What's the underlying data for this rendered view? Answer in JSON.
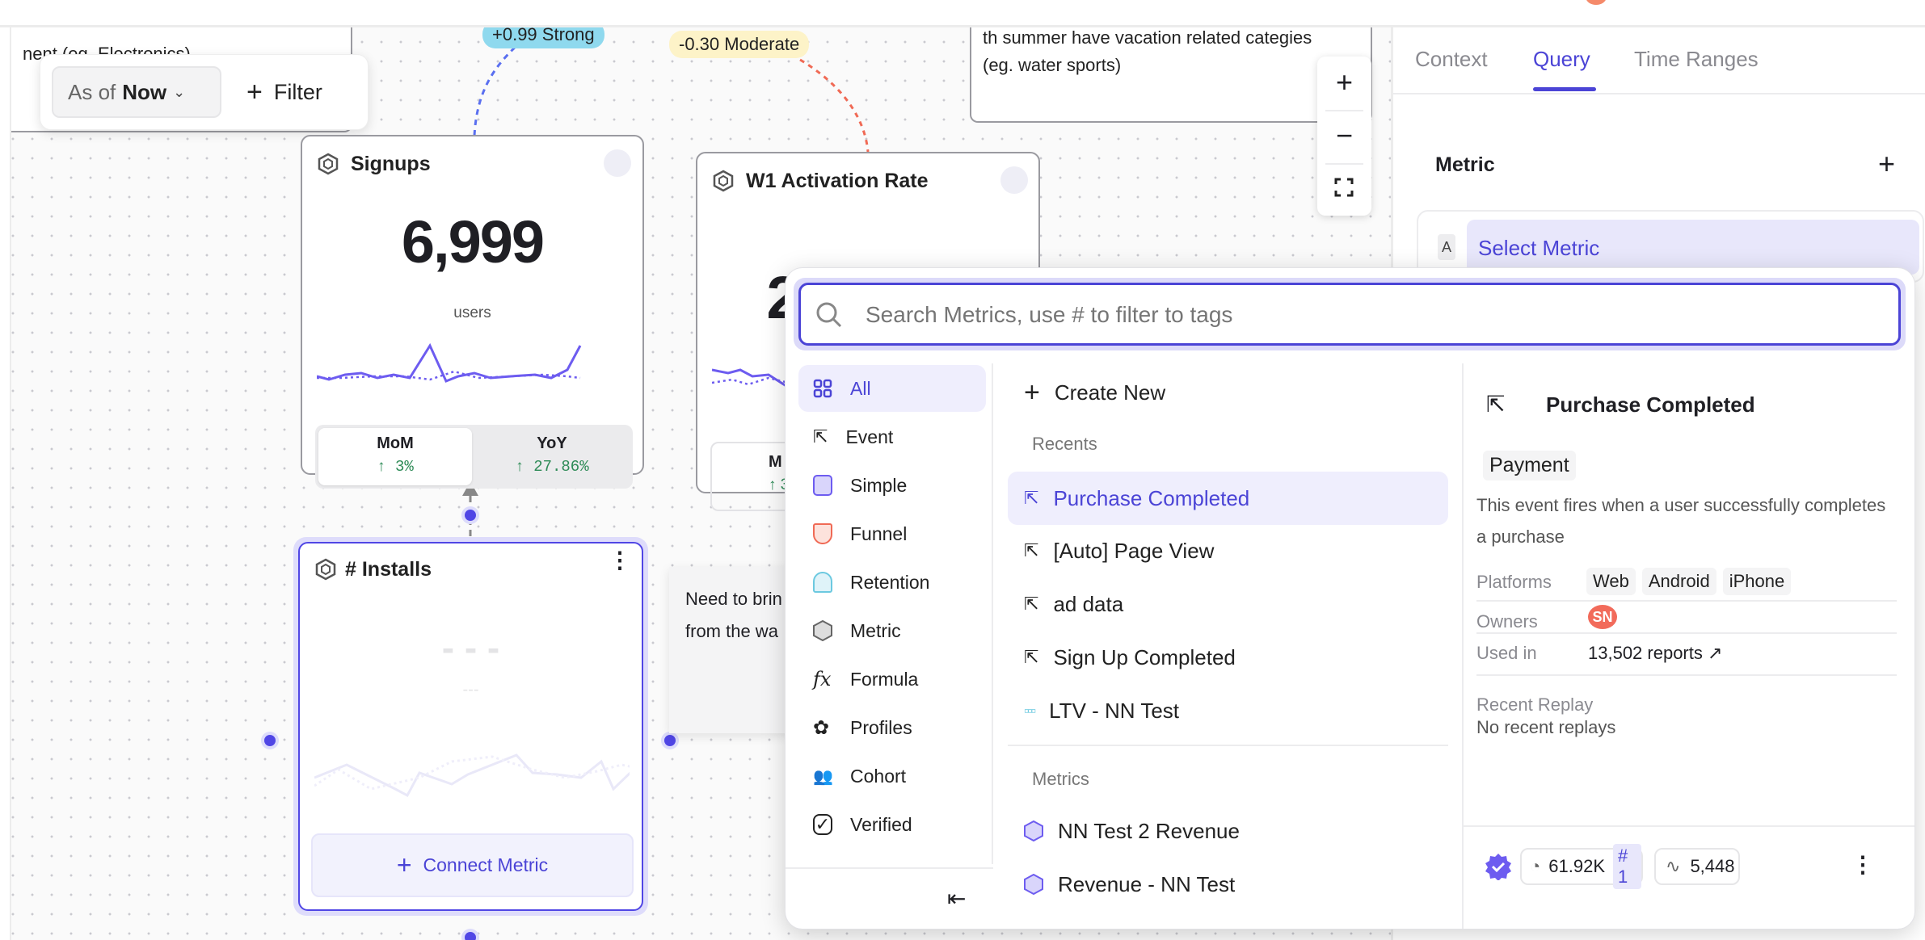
{
  "canvas": {
    "note_left": "nent  (eg. Electronics)",
    "note_right": [
      "th summer have vacation related categies",
      "(eg. water sports)"
    ],
    "note_bottom": [
      "Need to brin",
      "from the wa"
    ],
    "correlation_strong": "+0.99 Strong",
    "correlation_moderate": "-0.30 Moderate",
    "toolbar": {
      "as_of_label": "As of",
      "as_of_value": "Now",
      "filter_label": "Filter"
    },
    "zoom": {
      "zoom_in": "+",
      "zoom_out": "−"
    },
    "signups": {
      "title": "Signups",
      "value": "6,999",
      "unit": "users",
      "mom_label": "MoM",
      "mom_value": "↑ 3%",
      "yoy_label": "YoY",
      "yoy_value": "↑ 27.86%"
    },
    "activation": {
      "title": "W1 Activation Rate",
      "value": "24.04%",
      "mom_label": "M",
      "mom_value": "↑ 3"
    },
    "installs": {
      "title": "# Installs",
      "placeholder_value": "- - -",
      "placeholder_sub": "---",
      "connect_label": "Connect Metric"
    }
  },
  "panel": {
    "tabs": [
      {
        "label": "Context"
      },
      {
        "label": "Query"
      },
      {
        "label": "Time Ranges"
      }
    ],
    "active_tab": "Query",
    "metric_heading": "Metric",
    "metric_slot_letter": "A",
    "select_metric": "Select Metric"
  },
  "popover": {
    "search_placeholder": "Search Metrics, use # to filter to tags",
    "categories": [
      {
        "label": "All",
        "icon": "grid-icon"
      },
      {
        "label": "Event",
        "icon": "event-cursor-icon"
      },
      {
        "label": "Simple",
        "icon": "simple-hex-icon"
      },
      {
        "label": "Funnel",
        "icon": "funnel-icon"
      },
      {
        "label": "Retention",
        "icon": "retention-icon"
      },
      {
        "label": "Metric",
        "icon": "metric-hex-icon"
      },
      {
        "label": "Formula",
        "icon": "formula-fx-icon"
      },
      {
        "label": "Profiles",
        "icon": "profiles-icon"
      },
      {
        "label": "Cohort",
        "icon": "cohort-icon"
      },
      {
        "label": "Verified",
        "icon": "verified-icon"
      }
    ],
    "create_new": "Create New",
    "recents_label": "Recents",
    "recents": [
      {
        "label": "Purchase Completed",
        "icon": "event-cursor-icon"
      },
      {
        "label": "[Auto] Page View",
        "icon": "event-cursor-icon"
      },
      {
        "label": "ad data",
        "icon": "event-cursor-icon"
      },
      {
        "label": "Sign Up Completed",
        "icon": "event-cursor-icon"
      },
      {
        "label": "LTV - NN Test",
        "icon": "retention-grid-icon"
      }
    ],
    "metrics_label": "Metrics",
    "metrics": [
      {
        "label": "NN Test 2 Revenue",
        "icon": "simple-hex-icon"
      },
      {
        "label": "Revenue - NN Test",
        "icon": "simple-hex-icon"
      }
    ],
    "detail": {
      "title": "Purchase Completed",
      "tag": "Payment",
      "description": "This event fires when a user successfully completes a purchase",
      "platforms_label": "Platforms",
      "platforms": [
        "Web",
        "Android",
        "iPhone"
      ],
      "owners_label": "Owners",
      "owner_initials": "SN",
      "used_in_label": "Used in",
      "used_in_value": "13,502 reports ↗",
      "recent_replay_label": "Recent Replay",
      "recent_replay_value": "No recent replays",
      "volume": "61.92K",
      "rank": "# 1",
      "queries": "5,448"
    },
    "colors": {
      "accent": "#5046e5",
      "accent_light": "#eeedfd",
      "owner": "#f26b5b",
      "positive": "#2e8b57"
    }
  }
}
